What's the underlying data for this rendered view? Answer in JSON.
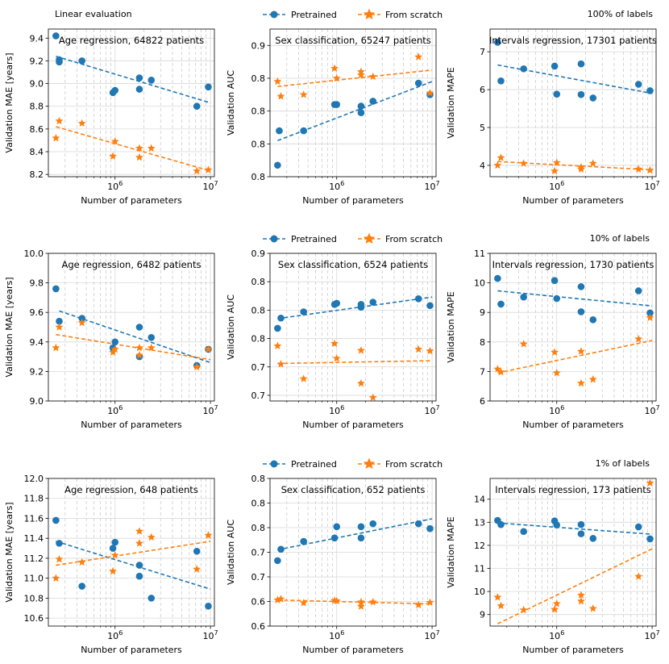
{
  "colors": {
    "pretrained": "#1f77b4",
    "scratch": "#ff7f0e",
    "grid": "#d9d9d9",
    "axis": "#000000"
  },
  "row_labels": [
    "Linear evaluation",
    "100% of labels",
    "10% of labels",
    "1% of labels"
  ],
  "legend": {
    "pretrained": "Pretrained",
    "scratch": "From scratch"
  },
  "chart_data": [
    {
      "type": "scatter",
      "row": 0,
      "col": 0,
      "title": "Age regression, 64822 patients",
      "xlabel": "Number of parameters",
      "ylabel": "Validation MAE [years]",
      "xscale": "log",
      "xlim": [
        200000,
        11000000
      ],
      "ylim": [
        8.18,
        9.48
      ],
      "yticks": [
        8.2,
        8.4,
        8.6,
        8.8,
        9.0,
        9.2,
        9.4
      ],
      "xticks": [
        "10^6",
        "10^7"
      ],
      "series": [
        {
          "name": "Pretrained",
          "marker": "circle",
          "x": [
            240000,
            260000,
            260000,
            450000,
            950000,
            1000000,
            1800000,
            1800000,
            2400000,
            7200000,
            9500000
          ],
          "y": [
            9.42,
            9.21,
            9.19,
            9.2,
            8.92,
            8.94,
            9.05,
            8.95,
            9.03,
            8.8,
            8.97
          ],
          "fit": [
            [
              240000,
              9.24
            ],
            [
              10000000,
              8.83
            ]
          ]
        },
        {
          "name": "From scratch",
          "marker": "star",
          "x": [
            240000,
            260000,
            450000,
            950000,
            1000000,
            1800000,
            1800000,
            2400000,
            7200000,
            9500000
          ],
          "y": [
            8.52,
            8.67,
            8.65,
            8.36,
            8.49,
            8.43,
            8.35,
            8.43,
            8.23,
            8.24
          ],
          "fit": [
            [
              240000,
              8.62
            ],
            [
              10000000,
              8.23
            ]
          ]
        }
      ]
    },
    {
      "type": "scatter",
      "row": 0,
      "col": 1,
      "title": "Sex classification, 65247 patients",
      "xlabel": "Number of parameters",
      "ylabel": "Validation AUC",
      "xscale": "log",
      "xlim": [
        200000,
        11000000
      ],
      "ylim": [
        0.78,
        0.87
      ],
      "yticks": [
        0.78,
        0.8,
        0.82,
        0.84,
        0.86
      ],
      "xticks": [
        "10^6",
        "10^7"
      ],
      "series": [
        {
          "name": "Pretrained",
          "marker": "circle",
          "x": [
            240000,
            250000,
            450000,
            950000,
            1000000,
            1800000,
            1800000,
            2400000,
            7200000,
            9500000
          ],
          "y": [
            0.787,
            0.808,
            0.808,
            0.824,
            0.824,
            0.819,
            0.823,
            0.826,
            0.837,
            0.83
          ],
          "fit": [
            [
              240000,
              0.802
            ],
            [
              10000000,
              0.838
            ]
          ]
        },
        {
          "name": "From scratch",
          "marker": "star",
          "x": [
            240000,
            260000,
            450000,
            950000,
            1000000,
            1800000,
            1800000,
            2400000,
            7200000,
            9500000
          ],
          "y": [
            0.838,
            0.829,
            0.83,
            0.846,
            0.84,
            0.842,
            0.844,
            0.841,
            0.853,
            0.831
          ],
          "fit": [
            [
              240000,
              0.835
            ],
            [
              10000000,
              0.845
            ]
          ]
        }
      ]
    },
    {
      "type": "scatter",
      "row": 0,
      "col": 2,
      "title": "Intervals regression, 17301 patients",
      "xlabel": "Number of parameters",
      "ylabel": "Validation MAPE",
      "xscale": "log",
      "xlim": [
        200000,
        11000000
      ],
      "ylim": [
        3.7,
        7.6
      ],
      "yticks": [
        4,
        5,
        6,
        7
      ],
      "xticks": [
        "10^6",
        "10^7"
      ],
      "series": [
        {
          "name": "Pretrained",
          "marker": "circle",
          "x": [
            240000,
            260000,
            450000,
            950000,
            1000000,
            1800000,
            1800000,
            2400000,
            7200000,
            9500000
          ],
          "y": [
            7.25,
            6.23,
            6.55,
            6.62,
            5.88,
            6.68,
            5.87,
            5.78,
            6.14,
            5.97
          ],
          "fit": [
            [
              240000,
              6.65
            ],
            [
              10000000,
              5.9
            ]
          ]
        },
        {
          "name": "From scratch",
          "marker": "star",
          "x": [
            240000,
            260000,
            450000,
            950000,
            1000000,
            1800000,
            1800000,
            2400000,
            7200000,
            9500000
          ],
          "y": [
            4.0,
            4.2,
            4.05,
            3.85,
            4.07,
            3.95,
            3.9,
            4.05,
            3.9,
            3.87
          ],
          "fit": [
            [
              240000,
              4.1
            ],
            [
              10000000,
              3.88
            ]
          ]
        }
      ]
    },
    {
      "type": "scatter",
      "row": 1,
      "col": 0,
      "title": "Age regression, 6482 patients",
      "xlabel": "Number of parameters",
      "ylabel": "Validation MAE [years]",
      "xscale": "log",
      "xlim": [
        200000,
        11000000
      ],
      "ylim": [
        9.0,
        10.0
      ],
      "yticks": [
        9.0,
        9.2,
        9.4,
        9.6,
        9.8,
        10.0
      ],
      "xticks": [
        "10^6",
        "10^7"
      ],
      "series": [
        {
          "name": "Pretrained",
          "marker": "circle",
          "x": [
            240000,
            260000,
            450000,
            950000,
            1000000,
            1800000,
            1800000,
            2400000,
            7200000,
            9500000
          ],
          "y": [
            9.76,
            9.54,
            9.56,
            9.36,
            9.4,
            9.5,
            9.3,
            9.43,
            9.24,
            9.35
          ],
          "fit": [
            [
              260000,
              9.61
            ],
            [
              10000000,
              9.26
            ]
          ]
        },
        {
          "name": "From scratch",
          "marker": "star",
          "x": [
            240000,
            260000,
            450000,
            950000,
            1000000,
            1800000,
            1800000,
            2400000,
            7200000,
            9500000
          ],
          "y": [
            9.36,
            9.5,
            9.53,
            9.33,
            9.35,
            9.36,
            9.31,
            9.36,
            9.23,
            9.35
          ],
          "fit": [
            [
              240000,
              9.45
            ],
            [
              10000000,
              9.28
            ]
          ]
        }
      ]
    },
    {
      "type": "scatter",
      "row": 1,
      "col": 1,
      "title": "Sex classification, 6524 patients",
      "xlabel": "Number of parameters",
      "ylabel": "Validation AUC",
      "xscale": "log",
      "xlim": [
        200000,
        11000000
      ],
      "ylim": [
        0.64,
        0.9
      ],
      "yticks": [
        0.65,
        0.7,
        0.75,
        0.8,
        0.85,
        0.9
      ],
      "xticks": [
        "10^6",
        "10^7"
      ],
      "series": [
        {
          "name": "Pretrained",
          "marker": "circle",
          "x": [
            240000,
            260000,
            450000,
            950000,
            1000000,
            1800000,
            1800000,
            2400000,
            7200000,
            9500000
          ],
          "y": [
            0.768,
            0.786,
            0.797,
            0.81,
            0.812,
            0.805,
            0.81,
            0.814,
            0.82,
            0.808
          ],
          "fit": [
            [
              240000,
              0.785
            ],
            [
              10000000,
              0.823
            ]
          ]
        },
        {
          "name": "From scratch",
          "marker": "star",
          "x": [
            240000,
            260000,
            450000,
            950000,
            1000000,
            1800000,
            1800000,
            2400000,
            7200000,
            9500000
          ],
          "y": [
            0.737,
            0.705,
            0.679,
            0.741,
            0.715,
            0.729,
            0.671,
            0.646,
            0.731,
            0.728
          ],
          "fit": [
            [
              240000,
              0.706
            ],
            [
              10000000,
              0.711
            ]
          ]
        }
      ]
    },
    {
      "type": "scatter",
      "row": 1,
      "col": 2,
      "title": "Intervals regression, 1730 patients",
      "xlabel": "Number of parameters",
      "ylabel": "Validation MAPE",
      "xscale": "log",
      "xlim": [
        200000,
        11000000
      ],
      "ylim": [
        6.0,
        11.0
      ],
      "yticks": [
        6,
        7,
        8,
        9,
        10,
        11
      ],
      "xticks": [
        "10^6",
        "10^7"
      ],
      "series": [
        {
          "name": "Pretrained",
          "marker": "circle",
          "x": [
            240000,
            260000,
            450000,
            950000,
            1000000,
            1800000,
            1800000,
            2400000,
            7200000,
            9500000
          ],
          "y": [
            10.15,
            9.28,
            9.52,
            10.08,
            9.47,
            9.87,
            9.02,
            8.75,
            9.73,
            8.98
          ],
          "fit": [
            [
              240000,
              9.73
            ],
            [
              10000000,
              9.22
            ]
          ]
        },
        {
          "name": "From scratch",
          "marker": "star",
          "x": [
            240000,
            260000,
            450000,
            950000,
            1000000,
            1800000,
            1800000,
            2400000,
            7200000,
            9500000
          ],
          "y": [
            7.08,
            6.98,
            7.93,
            7.65,
            6.95,
            7.68,
            6.6,
            6.73,
            8.1,
            8.82
          ],
          "fit": [
            [
              240000,
              6.95
            ],
            [
              10000000,
              8.05
            ]
          ]
        }
      ]
    },
    {
      "type": "scatter",
      "row": 2,
      "col": 0,
      "title": "Age regression, 648 patients",
      "xlabel": "Number of parameters",
      "ylabel": "Validation MAE [years]",
      "xscale": "log",
      "xlim": [
        200000,
        11000000
      ],
      "ylim": [
        10.52,
        12.0
      ],
      "yticks": [
        10.6,
        10.8,
        11.0,
        11.2,
        11.4,
        11.6,
        11.8,
        12.0
      ],
      "xticks": [
        "10^6",
        "10^7"
      ],
      "series": [
        {
          "name": "Pretrained",
          "marker": "circle",
          "x": [
            240000,
            260000,
            450000,
            950000,
            1000000,
            1800000,
            1800000,
            2400000,
            7200000,
            9500000
          ],
          "y": [
            11.58,
            11.35,
            10.92,
            11.3,
            11.36,
            11.13,
            11.02,
            10.8,
            11.27,
            10.72
          ],
          "fit": [
            [
              240000,
              11.37
            ],
            [
              10000000,
              10.89
            ]
          ]
        },
        {
          "name": "From scratch",
          "marker": "star",
          "x": [
            240000,
            260000,
            450000,
            950000,
            1000000,
            1800000,
            1800000,
            2400000,
            7200000,
            9500000
          ],
          "y": [
            11.0,
            11.19,
            11.16,
            11.07,
            11.23,
            11.47,
            11.35,
            11.41,
            11.09,
            11.43
          ],
          "fit": [
            [
              240000,
              11.13
            ],
            [
              10000000,
              11.37
            ]
          ]
        }
      ]
    },
    {
      "type": "scatter",
      "row": 2,
      "col": 1,
      "title": "Sex classification, 652 patients",
      "xlabel": "Number of parameters",
      "ylabel": "Validation AUC",
      "xscale": "log",
      "xlim": [
        200000,
        11000000
      ],
      "ylim": [
        0.55,
        0.85
      ],
      "yticks": [
        0.55,
        0.6,
        0.65,
        0.7,
        0.75,
        0.8,
        0.85
      ],
      "xticks": [
        "10^6",
        "10^7"
      ],
      "series": [
        {
          "name": "Pretrained",
          "marker": "circle",
          "x": [
            240000,
            260000,
            450000,
            950000,
            1000000,
            1800000,
            1800000,
            2400000,
            7200000,
            9500000
          ],
          "y": [
            0.683,
            0.706,
            0.722,
            0.729,
            0.752,
            0.729,
            0.752,
            0.758,
            0.758,
            0.748
          ],
          "fit": [
            [
              240000,
              0.705
            ],
            [
              10000000,
              0.768
            ]
          ]
        },
        {
          "name": "From scratch",
          "marker": "star",
          "x": [
            240000,
            260000,
            450000,
            950000,
            1000000,
            1800000,
            1800000,
            2400000,
            7200000,
            9500000
          ],
          "y": [
            0.603,
            0.605,
            0.597,
            0.602,
            0.601,
            0.599,
            0.59,
            0.599,
            0.593,
            0.598
          ],
          "fit": [
            [
              240000,
              0.603
            ],
            [
              10000000,
              0.595
            ]
          ]
        }
      ]
    },
    {
      "type": "scatter",
      "row": 2,
      "col": 2,
      "title": "Intervals regression, 173 patients",
      "xlabel": "Number of parameters",
      "ylabel": "Validation MAPE",
      "xscale": "log",
      "xlim": [
        200000,
        11000000
      ],
      "ylim": [
        8.5,
        14.9
      ],
      "yticks": [
        9,
        10,
        11,
        12,
        13,
        14
      ],
      "xticks": [
        "10^6",
        "10^7"
      ],
      "series": [
        {
          "name": "Pretrained",
          "marker": "circle",
          "x": [
            240000,
            260000,
            450000,
            950000,
            1000000,
            1800000,
            1800000,
            2400000,
            7200000,
            9500000
          ],
          "y": [
            13.08,
            12.9,
            12.6,
            13.06,
            12.88,
            12.9,
            12.5,
            12.3,
            12.8,
            12.28
          ],
          "fit": [
            [
              240000,
              12.97
            ],
            [
              10000000,
              12.48
            ]
          ]
        },
        {
          "name": "From scratch",
          "marker": "star",
          "x": [
            240000,
            260000,
            450000,
            950000,
            1000000,
            1800000,
            1800000,
            2400000,
            7200000,
            9500000
          ],
          "y": [
            9.75,
            9.38,
            9.2,
            9.22,
            9.47,
            9.84,
            9.58,
            9.26,
            10.65,
            14.7
          ],
          "fit": [
            [
              240000,
              8.6
            ],
            [
              10000000,
              11.85
            ]
          ]
        }
      ]
    }
  ]
}
